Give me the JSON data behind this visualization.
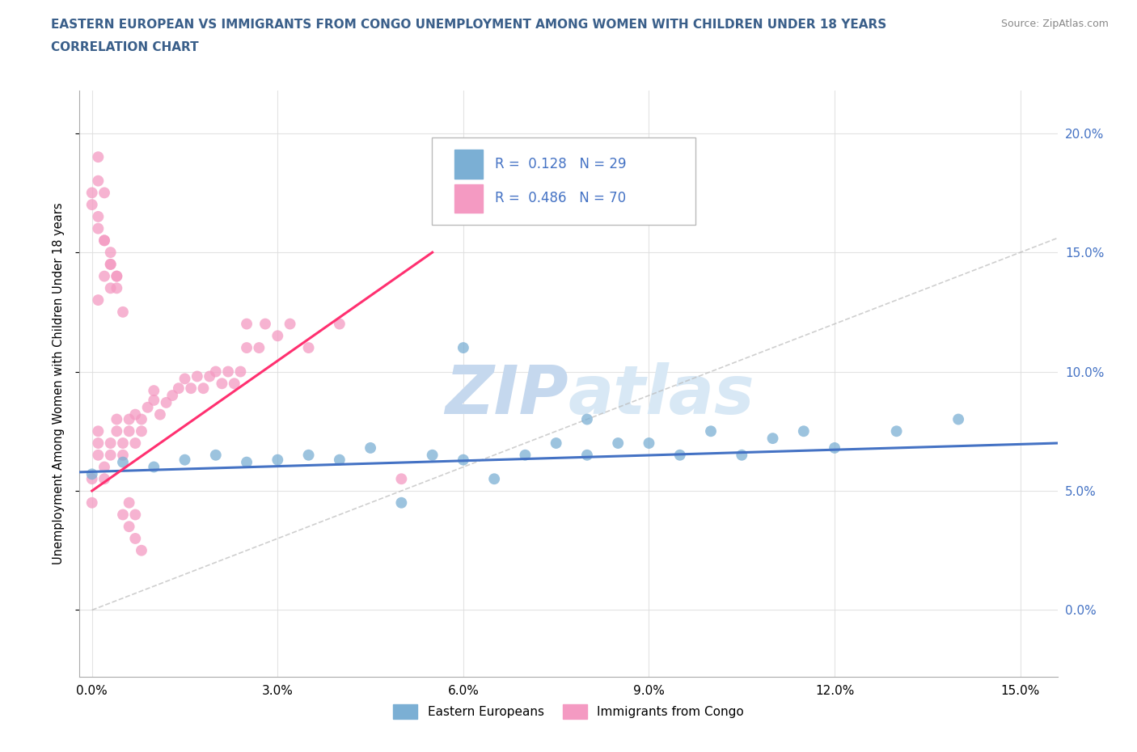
{
  "title_line1": "EASTERN EUROPEAN VS IMMIGRANTS FROM CONGO UNEMPLOYMENT AMONG WOMEN WITH CHILDREN UNDER 18 YEARS",
  "title_line2": "CORRELATION CHART",
  "source_text": "Source: ZipAtlas.com",
  "ylabel": "Unemployment Among Women with Children Under 18 years",
  "x_ticks": [
    0.0,
    0.03,
    0.06,
    0.09,
    0.12,
    0.15
  ],
  "x_tick_labels": [
    "0.0%",
    "3.0%",
    "6.0%",
    "9.0%",
    "12.0%",
    "15.0%"
  ],
  "y_ticks_right": [
    0.0,
    0.05,
    0.1,
    0.15,
    0.2
  ],
  "y_tick_labels_right": [
    "0.0%",
    "5.0%",
    "10.0%",
    "15.0%",
    "20.0%"
  ],
  "xlim": [
    -0.002,
    0.156
  ],
  "ylim": [
    -0.028,
    0.218
  ],
  "blue_color": "#7BAFD4",
  "pink_color": "#F49AC2",
  "blue_line_color": "#4472C4",
  "pink_line_color": "#FF3070",
  "grid_color": "#DDDDDD",
  "title_color": "#3A5F8A",
  "watermark_color": "#D0DFF0",
  "legend_R1": "0.128",
  "legend_N1": "29",
  "legend_R2": "0.486",
  "legend_N2": "70",
  "blue_scatter_x": [
    0.0,
    0.005,
    0.01,
    0.015,
    0.02,
    0.025,
    0.03,
    0.035,
    0.04,
    0.045,
    0.05,
    0.055,
    0.06,
    0.065,
    0.07,
    0.075,
    0.08,
    0.085,
    0.09,
    0.095,
    0.1,
    0.105,
    0.11,
    0.115,
    0.12,
    0.13,
    0.14,
    0.06,
    0.08
  ],
  "blue_scatter_y": [
    0.057,
    0.062,
    0.06,
    0.063,
    0.065,
    0.062,
    0.063,
    0.065,
    0.063,
    0.068,
    0.045,
    0.065,
    0.063,
    0.055,
    0.065,
    0.07,
    0.065,
    0.07,
    0.07,
    0.065,
    0.075,
    0.065,
    0.072,
    0.075,
    0.068,
    0.075,
    0.08,
    0.11,
    0.08
  ],
  "pink_scatter_x": [
    0.0,
    0.0,
    0.001,
    0.001,
    0.001,
    0.002,
    0.002,
    0.003,
    0.003,
    0.004,
    0.004,
    0.005,
    0.005,
    0.006,
    0.006,
    0.007,
    0.007,
    0.008,
    0.008,
    0.009,
    0.01,
    0.01,
    0.011,
    0.012,
    0.013,
    0.014,
    0.015,
    0.016,
    0.017,
    0.018,
    0.019,
    0.02,
    0.021,
    0.022,
    0.023,
    0.024,
    0.025,
    0.025,
    0.027,
    0.028,
    0.03,
    0.032,
    0.035,
    0.04,
    0.05,
    0.0,
    0.001,
    0.002,
    0.003,
    0.001,
    0.002,
    0.003,
    0.004,
    0.005,
    0.006,
    0.007,
    0.008,
    0.001,
    0.001,
    0.002,
    0.003,
    0.004,
    0.0,
    0.001,
    0.002,
    0.003,
    0.004,
    0.005,
    0.006,
    0.007
  ],
  "pink_scatter_y": [
    0.055,
    0.045,
    0.065,
    0.07,
    0.075,
    0.06,
    0.055,
    0.065,
    0.07,
    0.075,
    0.08,
    0.065,
    0.07,
    0.075,
    0.08,
    0.082,
    0.07,
    0.075,
    0.08,
    0.085,
    0.088,
    0.092,
    0.082,
    0.087,
    0.09,
    0.093,
    0.097,
    0.093,
    0.098,
    0.093,
    0.098,
    0.1,
    0.095,
    0.1,
    0.095,
    0.1,
    0.11,
    0.12,
    0.11,
    0.12,
    0.115,
    0.12,
    0.11,
    0.12,
    0.055,
    0.175,
    0.16,
    0.155,
    0.145,
    0.13,
    0.14,
    0.135,
    0.14,
    0.04,
    0.035,
    0.03,
    0.025,
    0.19,
    0.18,
    0.175,
    0.15,
    0.14,
    0.17,
    0.165,
    0.155,
    0.145,
    0.135,
    0.125,
    0.045,
    0.04
  ],
  "bottom_legend_labels": [
    "Eastern Europeans",
    "Immigrants from Congo"
  ],
  "bottom_legend_colors": [
    "#7BAFD4",
    "#F49AC2"
  ],
  "dashed_line_x": [
    0.0,
    0.21
  ],
  "dashed_line_y": [
    0.0,
    0.21
  ]
}
